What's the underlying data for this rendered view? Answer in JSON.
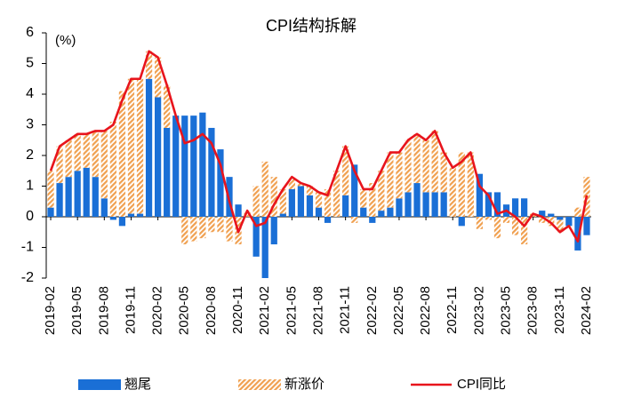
{
  "chart_data": {
    "type": "bar",
    "stacked": true,
    "title": "CPI结构拆解",
    "y_unit_label": "(%)",
    "categories": [
      "2019-02",
      null,
      null,
      "2019-05",
      null,
      null,
      "2019-08",
      null,
      null,
      "2019-11",
      null,
      null,
      "2020-02",
      null,
      null,
      "2020-05",
      null,
      null,
      "2020-08",
      null,
      null,
      "2020-11",
      null,
      null,
      "2021-02",
      null,
      null,
      "2021-05",
      null,
      null,
      "2021-08",
      null,
      null,
      "2021-11",
      null,
      null,
      "2022-02",
      null,
      null,
      "2022-05",
      null,
      null,
      "2022-08",
      null,
      null,
      "2022-11",
      null,
      null,
      "2023-02",
      null,
      null,
      "2023-05",
      null,
      null,
      "2023-08",
      null,
      null,
      "2023-11",
      null,
      null,
      "2024-02"
    ],
    "series": [
      {
        "name": "翘尾",
        "color": "#1a6fd6",
        "hatch": false,
        "values": [
          0.3,
          1.1,
          1.3,
          1.5,
          1.6,
          1.3,
          0.6,
          -0.1,
          -0.3,
          0.1,
          0.1,
          4.5,
          3.9,
          2.9,
          3.3,
          3.3,
          3.3,
          3.4,
          2.9,
          2.2,
          1.3,
          0.4,
          0.0,
          -1.3,
          -2.0,
          -0.9,
          0.1,
          0.9,
          1.0,
          0.7,
          0.3,
          -0.2,
          0.0,
          0.7,
          1.7,
          0.3,
          -0.2,
          0.2,
          0.3,
          0.6,
          0.8,
          1.1,
          0.8,
          0.8,
          0.8,
          0.0,
          -0.3,
          0.0,
          1.4,
          0.8,
          0.8,
          0.4,
          0.6,
          0.6,
          0.0,
          0.2,
          0.1,
          -0.1,
          -0.3,
          -1.1,
          -0.6
        ]
      },
      {
        "name": "新涨价",
        "color": "#f0a050",
        "hatch": true,
        "values": [
          1.2,
          1.2,
          1.2,
          1.2,
          1.1,
          1.5,
          2.2,
          3.1,
          4.1,
          4.4,
          4.4,
          0.9,
          1.3,
          1.4,
          0.0,
          -0.9,
          -0.8,
          -0.7,
          -0.5,
          -0.5,
          -0.8,
          -0.9,
          0.2,
          1.0,
          1.8,
          1.3,
          0.8,
          0.4,
          0.1,
          0.3,
          0.5,
          0.9,
          1.5,
          1.6,
          -0.2,
          0.6,
          1.1,
          1.3,
          1.8,
          1.5,
          1.7,
          1.6,
          1.7,
          2.0,
          1.3,
          1.6,
          2.1,
          2.1,
          -0.4,
          -0.1,
          -0.7,
          -0.2,
          -0.6,
          -0.9,
          0.1,
          -0.2,
          -0.3,
          -0.4,
          0.0,
          0.3,
          1.3
        ]
      },
      {
        "name": "CPI同比",
        "color": "#e8141c",
        "type": "line",
        "values": [
          1.5,
          2.3,
          2.5,
          2.7,
          2.7,
          2.8,
          2.8,
          3.0,
          3.8,
          4.5,
          4.5,
          5.4,
          5.2,
          4.3,
          3.3,
          2.4,
          2.5,
          2.7,
          2.4,
          1.7,
          0.5,
          -0.5,
          0.2,
          -0.3,
          -0.2,
          0.4,
          0.9,
          1.3,
          1.1,
          1.0,
          0.8,
          0.7,
          1.5,
          2.3,
          1.5,
          0.9,
          0.9,
          1.5,
          2.1,
          2.1,
          2.5,
          2.7,
          2.5,
          2.8,
          2.1,
          1.6,
          1.8,
          2.1,
          1.0,
          0.7,
          0.1,
          0.2,
          0.0,
          -0.3,
          0.1,
          0.0,
          -0.2,
          -0.5,
          -0.3,
          -0.8,
          0.7
        ]
      }
    ],
    "ylim": [
      -2,
      6
    ],
    "yticks": [
      -2,
      -1,
      0,
      1,
      2,
      3,
      4,
      5,
      6
    ],
    "grid": false,
    "legend": "bottom"
  }
}
